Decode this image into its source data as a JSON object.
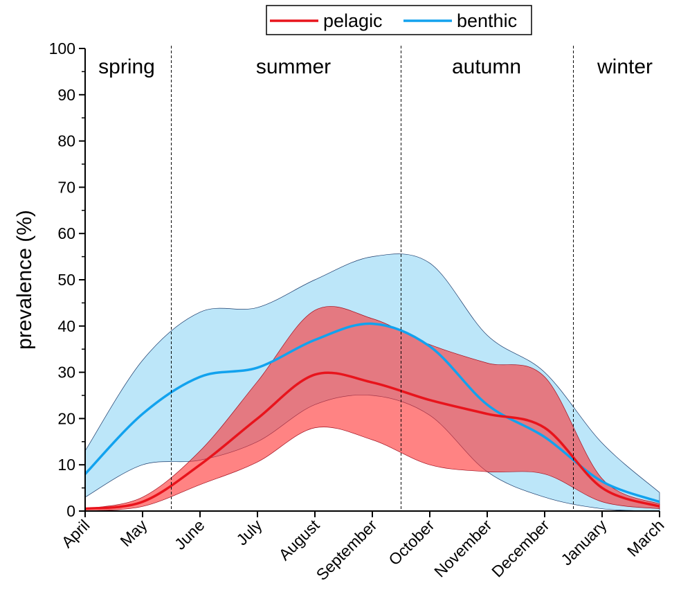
{
  "chart_data": {
    "type": "line",
    "ylabel": "prevalence (%)",
    "categories": [
      "April",
      "May",
      "June",
      "July",
      "August",
      "September",
      "October",
      "November",
      "December",
      "January",
      "March"
    ],
    "ylim": [
      0,
      100
    ],
    "yticks": [
      0,
      10,
      20,
      30,
      40,
      50,
      60,
      70,
      80,
      90,
      100
    ],
    "annotations": [
      "spring",
      "summer",
      "autumn",
      "winter"
    ],
    "series": [
      {
        "name": "pelagic",
        "color": "#e8141c",
        "band_color": "#ff3030",
        "values": [
          0.5,
          2,
          10,
          20,
          29.5,
          27.8,
          24,
          21,
          18,
          5,
          1
        ],
        "upper": [
          0.5,
          3,
          13,
          28,
          43.4,
          41.6,
          36,
          32,
          29,
          7,
          1.5
        ],
        "lower": [
          0,
          1,
          5.7,
          10.6,
          18,
          15.4,
          10,
          8.5,
          8,
          2,
          0.5
        ]
      },
      {
        "name": "benthic",
        "color": "#12a2ee",
        "band_color": "#8fd6f5",
        "values": [
          8,
          21,
          29,
          31,
          37,
          40.5,
          35.6,
          23,
          16,
          6.4,
          2
        ],
        "upper": [
          13,
          32.6,
          43,
          44,
          50,
          55,
          53.6,
          38,
          30,
          14.7,
          4
        ],
        "lower": [
          3,
          10,
          11,
          15,
          23,
          25,
          20.7,
          8.5,
          3,
          0.5,
          0
        ]
      }
    ]
  }
}
